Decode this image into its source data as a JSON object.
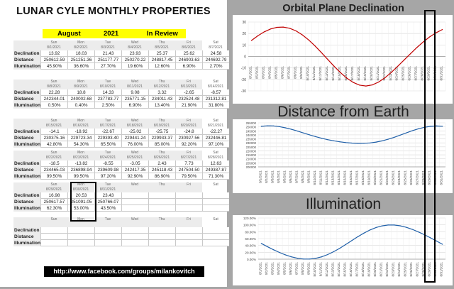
{
  "sheet": {
    "title": "LUNAR CYLE MONTHLY PROPERTIES",
    "month": "August",
    "year": "2021",
    "status": "In Review",
    "row_labels": [
      "Declination",
      "Distance",
      "Illumination"
    ],
    "weeks": [
      {
        "days": [
          "Sun",
          "Mon",
          "Tue",
          "Wed",
          "Thu",
          "Fri",
          "Sat"
        ],
        "dates": [
          "8/1/2021",
          "8/2/2021",
          "8/3/2021",
          "8/4/2021",
          "8/5/2021",
          "8/6/2021",
          "8/7/2021"
        ],
        "declination": [
          "13.92",
          "18.03",
          "21.43",
          "23.93",
          "25.37",
          "25.62",
          "24.58"
        ],
        "distance": [
          "250612.59",
          "251251.36",
          "251177.77",
          "250270.22",
          "248817.45",
          "246903.63",
          "244692.79"
        ],
        "illumination": [
          "45.90%",
          "36.60%",
          "27.70%",
          "19.60%",
          "12.60%",
          "6.90%",
          "2.70%"
        ]
      },
      {
        "days": [
          "Sun",
          "Mon",
          "Tue",
          "Wed",
          "Thu",
          "Fri",
          "Sat"
        ],
        "dates": [
          "8/8/2021",
          "8/9/2021",
          "8/10/2021",
          "8/11/2021",
          "8/12/2021",
          "8/13/2021",
          "8/14/2021"
        ],
        "declination": [
          "22.28",
          "18.8",
          "14.33",
          "9.08",
          "3.32",
          "-2.65",
          "-8.57"
        ],
        "distance": [
          "242344.01",
          "240002.68",
          "237783.77",
          "235771.15",
          "234011.43",
          "232524.48",
          "231312.81"
        ],
        "illumination": [
          "0.50%",
          "0.40%",
          "2.50%",
          "6.90%",
          "13.40%",
          "21.90%",
          "31.80%"
        ]
      },
      {
        "days": [
          "Sun",
          "Mon",
          "Tue",
          "Wed",
          "Thu",
          "Fri",
          "Sat"
        ],
        "dates": [
          "8/15/2021",
          "8/16/2021",
          "8/17/2021",
          "8/18/2021",
          "8/19/2021",
          "8/20/2021",
          "8/21/2021"
        ],
        "declination": [
          "-14.1",
          "-18.92",
          "-22.67",
          "-25.02",
          "-25.75",
          "-24.8",
          "-22.27"
        ],
        "distance": [
          "230375.16",
          "229723.34",
          "229393.40",
          "229441.24",
          "229933.37",
          "230927.56",
          "232446.81"
        ],
        "illumination": [
          "42.80%",
          "54.30%",
          "65.50%",
          "76.00%",
          "85.00%",
          "92.20%",
          "97.10%"
        ]
      },
      {
        "days": [
          "Sun",
          "Mon",
          "Tue",
          "Wed",
          "Thu",
          "Fri",
          "Sat"
        ],
        "dates": [
          "8/22/2021",
          "8/23/2021",
          "8/24/2021",
          "8/25/2021",
          "8/26/2021",
          "8/27/2021",
          "8/28/2021"
        ],
        "declination": [
          "-18.5",
          "-13.82",
          "-8.55",
          "-3.05",
          "2.43",
          "7.73",
          "12.63"
        ],
        "distance": [
          "234465.03",
          "236898.94",
          "239609.98",
          "242417.35",
          "245118.43",
          "247504.50",
          "249387.87"
        ],
        "illumination": [
          "99.50%",
          "99.50%",
          "97.20%",
          "92.90%",
          "86.90%",
          "79.50%",
          "71.30%"
        ]
      },
      {
        "days": [
          "Sun",
          "Mon",
          "Tue",
          "Wed",
          "Thu",
          "Fri",
          "Sat"
        ],
        "dates": [
          "8/29/2021",
          "8/30/2021",
          "8/31/2021",
          "",
          "",
          "",
          ""
        ],
        "declination": [
          "16.98",
          "20.53",
          "23.43",
          "",
          "",
          "",
          ""
        ],
        "distance": [
          "250617.57",
          "251091.05",
          "250766.07",
          "",
          "",
          "",
          ""
        ],
        "illumination": [
          "62.30%",
          "53.00%",
          "43.50%",
          "",
          "",
          "",
          ""
        ]
      },
      {
        "days": [
          "Sun",
          "Mon",
          "Tue",
          "Wed",
          "Thu",
          "Fri",
          "Sat"
        ],
        "dates": [
          "",
          "",
          "",
          "",
          "",
          "",
          ""
        ],
        "declination": [
          "",
          "",
          "",
          "",
          "",
          "",
          ""
        ],
        "distance": [
          "",
          "",
          "",
          "",
          "",
          "",
          ""
        ],
        "illumination": [
          "",
          "",
          "",
          "",
          "",
          "",
          ""
        ]
      }
    ],
    "footer_link": "http://www.facebook.com/groups/milankovitch"
  },
  "charts": {
    "dates": [
      "8/1/2021",
      "8/2/2021",
      "8/3/2021",
      "8/4/2021",
      "8/5/2021",
      "8/6/2021",
      "8/7/2021",
      "8/8/2021",
      "8/9/2021",
      "8/10/2021",
      "8/11/2021",
      "8/12/2021",
      "8/13/2021",
      "8/14/2021",
      "8/15/2021",
      "8/16/2021",
      "8/17/2021",
      "8/18/2021",
      "8/19/2021",
      "8/20/2021",
      "8/21/2021",
      "8/22/2021",
      "8/23/2021",
      "8/24/2021",
      "8/25/2021",
      "8/26/2021",
      "8/27/2021",
      "8/28/2021",
      "8/29/2021",
      "8/30/2021",
      "8/31/2021"
    ],
    "declination": {
      "title": "Orbital Plane Declination",
      "type": "line",
      "color": "#c00000",
      "ylim": [
        -30,
        30
      ],
      "yticks": [
        "30",
        "20",
        "10",
        "0",
        "-10",
        "-20",
        "-30"
      ],
      "values": [
        13.92,
        18.03,
        21.43,
        23.93,
        25.37,
        25.62,
        24.58,
        22.28,
        18.8,
        14.33,
        9.08,
        3.32,
        -2.65,
        -8.57,
        -14.1,
        -18.92,
        -22.67,
        -25.02,
        -25.75,
        -24.8,
        -22.27,
        -18.5,
        -13.82,
        -8.55,
        -3.05,
        2.43,
        7.73,
        12.63,
        16.98,
        20.53,
        23.43
      ]
    },
    "distance": {
      "title": "Distance from Earth",
      "type": "line",
      "color": "#1f5fa8",
      "ylim": [
        200000,
        255000
      ],
      "yticks": [
        "255000",
        "250000",
        "245000",
        "240000",
        "235000",
        "230000",
        "225000",
        "220000",
        "215000",
        "210000",
        "205000",
        "200000"
      ],
      "values": [
        250612.59,
        251251.36,
        251177.77,
        250270.22,
        248817.45,
        246903.63,
        244692.79,
        242344.01,
        240002.68,
        237783.77,
        235771.15,
        234011.43,
        232524.48,
        231312.81,
        230375.16,
        229723.34,
        229393.4,
        229441.24,
        229933.37,
        230927.56,
        232446.81,
        234465.03,
        236898.94,
        239609.98,
        242417.35,
        245118.43,
        247504.5,
        249387.87,
        250617.57,
        251091.05,
        250766.07
      ]
    },
    "illumination": {
      "title": "Illumination",
      "type": "line",
      "color": "#1f5fa8",
      "ylim": [
        0,
        120
      ],
      "yticks": [
        "120.00%",
        "100.00%",
        "80.00%",
        "60.00%",
        "40.00%",
        "20.00%",
        "0.00%"
      ],
      "values": [
        45.9,
        36.6,
        27.7,
        19.6,
        12.6,
        6.9,
        2.7,
        0.5,
        0.4,
        2.5,
        6.9,
        13.4,
        21.9,
        31.8,
        42.8,
        54.3,
        65.5,
        76.0,
        85.0,
        92.2,
        97.1,
        99.5,
        99.5,
        97.2,
        92.9,
        86.9,
        79.5,
        71.3,
        62.3,
        53.0,
        43.5
      ]
    }
  }
}
